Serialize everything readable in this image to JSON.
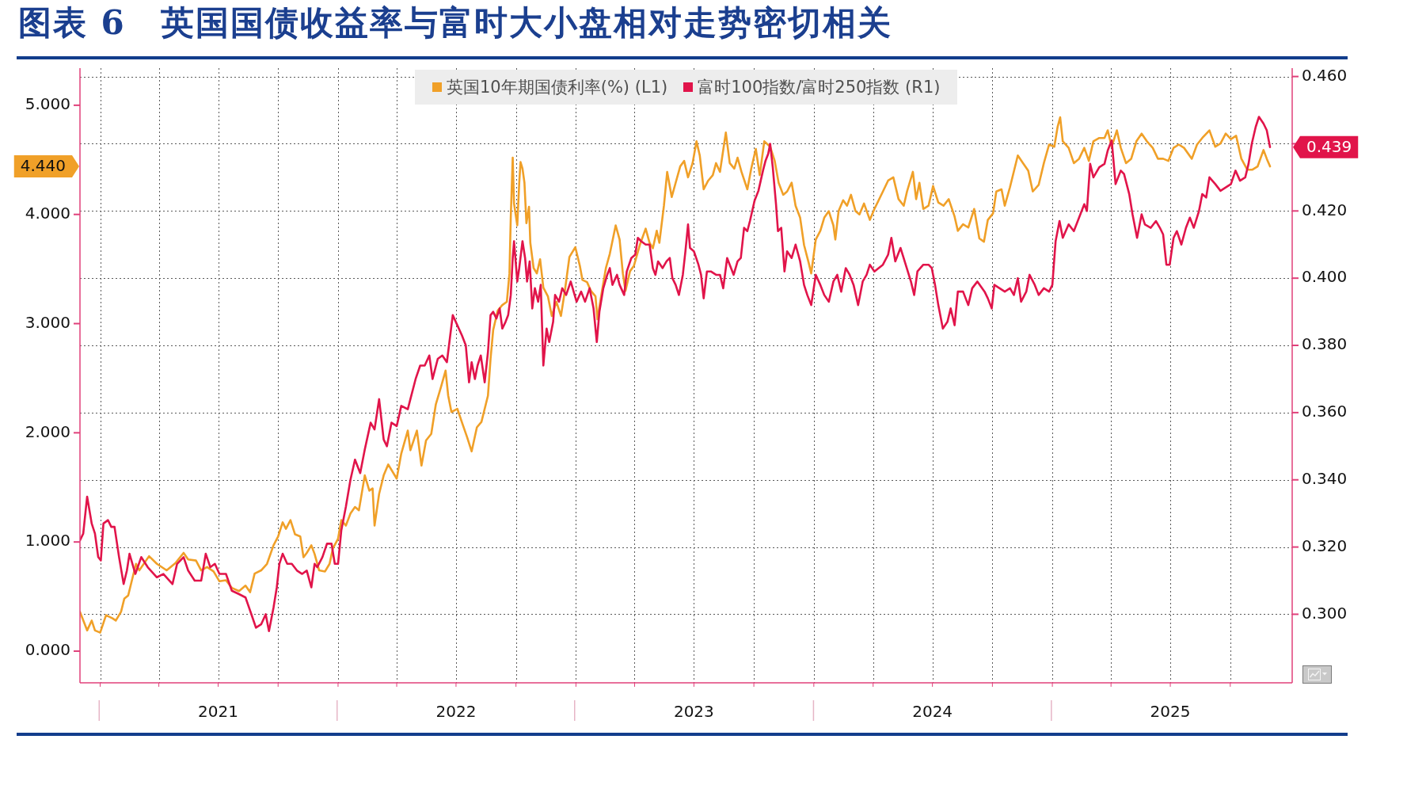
{
  "chart_data": {
    "type": "line",
    "title": "图表 6　英国国债收益率与富时大小盘相对走势密切相关",
    "series": [
      {
        "name": "英国10年期国债利率(%) (L1)",
        "color": "#f0a028",
        "x": [
          "2020-12-01",
          "2020-12-12",
          "2020-12-19",
          "2020-12-24",
          "2021-01-01",
          "2021-01-10",
          "2021-01-20",
          "2021-01-25",
          "2021-02-02",
          "2021-02-07",
          "2021-02-13",
          "2021-02-20",
          "2021-02-25",
          "2021-03-02",
          "2021-03-17",
          "2021-03-29",
          "2021-04-13",
          "2021-04-27",
          "2021-05-09",
          "2021-05-16",
          "2021-05-28",
          "2021-06-05",
          "2021-06-14",
          "2021-06-24",
          "2021-07-03",
          "2021-07-13",
          "2021-07-22",
          "2021-08-02",
          "2021-08-12",
          "2021-08-19",
          "2021-08-26",
          "2021-09-05",
          "2021-09-14",
          "2021-09-24",
          "2021-10-01",
          "2021-10-08",
          "2021-10-13",
          "2021-10-20",
          "2021-10-27",
          "2021-11-04",
          "2021-11-09",
          "2021-11-14",
          "2021-11-21",
          "2021-11-26",
          "2021-12-03",
          "2021-12-12",
          "2021-12-19",
          "2021-12-24",
          "2022-01-01",
          "2022-01-06",
          "2022-01-13",
          "2022-01-20",
          "2022-01-27",
          "2022-02-02",
          "2022-02-11",
          "2022-02-18",
          "2022-02-23",
          "2022-02-26",
          "2022-03-05",
          "2022-03-12",
          "2022-03-19",
          "2022-04-01",
          "2022-04-08",
          "2022-04-18",
          "2022-04-22",
          "2022-05-02",
          "2022-05-09",
          "2022-05-16",
          "2022-05-24",
          "2022-05-31",
          "2022-06-08",
          "2022-06-15",
          "2022-06-19",
          "2022-06-24",
          "2022-07-03",
          "2022-07-11",
          "2022-07-18",
          "2022-07-25",
          "2022-08-02",
          "2022-08-09",
          "2022-08-19",
          "2022-08-23",
          "2022-08-27",
          "2022-09-03",
          "2022-09-10",
          "2022-09-17",
          "2022-09-21",
          "2022-09-23",
          "2022-09-26",
          "2022-09-28",
          "2022-10-03",
          "2022-10-06",
          "2022-10-08",
          "2022-10-11",
          "2022-10-14",
          "2022-10-17",
          "2022-10-21",
          "2022-10-23",
          "2022-10-28",
          "2022-11-02",
          "2022-11-07",
          "2022-11-12",
          "2022-11-19",
          "2022-11-25",
          "2022-12-02",
          "2022-12-09",
          "2022-12-15",
          "2022-12-22",
          "2022-12-31",
          "2023-01-07",
          "2023-01-11",
          "2023-01-18",
          "2023-01-24",
          "2023-01-31",
          "2023-02-03",
          "2023-02-10",
          "2023-02-16",
          "2023-02-22",
          "2023-03-03",
          "2023-03-09",
          "2023-03-14",
          "2023-03-18",
          "2023-03-25",
          "2023-03-31",
          "2023-04-09",
          "2023-04-18",
          "2023-04-24",
          "2023-04-29",
          "2023-05-05",
          "2023-05-09",
          "2023-05-16",
          "2023-05-21",
          "2023-05-28",
          "2023-06-03",
          "2023-06-10",
          "2023-06-16",
          "2023-06-22",
          "2023-06-29",
          "2023-07-05",
          "2023-07-10",
          "2023-07-16",
          "2023-07-23",
          "2023-07-30",
          "2023-08-04",
          "2023-08-10",
          "2023-08-19",
          "2023-08-25",
          "2023-09-01",
          "2023-09-06",
          "2023-09-12",
          "2023-09-21",
          "2023-09-27",
          "2023-10-04",
          "2023-10-10",
          "2023-10-17",
          "2023-10-26",
          "2023-11-02",
          "2023-11-08",
          "2023-11-15",
          "2023-11-21",
          "2023-11-28",
          "2023-12-04",
          "2023-12-11",
          "2023-12-17",
          "2023-12-24",
          "2023-12-28",
          "2024-01-04",
          "2024-01-11",
          "2024-01-17",
          "2024-01-24",
          "2024-01-31",
          "2024-02-03",
          "2024-02-08",
          "2024-02-15",
          "2024-02-21",
          "2024-02-27",
          "2024-03-05",
          "2024-03-11",
          "2024-03-18",
          "2024-03-27",
          "2024-04-03",
          "2024-04-16",
          "2024-04-24",
          "2024-05-02",
          "2024-05-10",
          "2024-05-18",
          "2024-05-23",
          "2024-06-01",
          "2024-06-06",
          "2024-06-11",
          "2024-06-17",
          "2024-06-25",
          "2024-07-02",
          "2024-07-10",
          "2024-07-18",
          "2024-07-26",
          "2024-08-04",
          "2024-08-09",
          "2024-08-17",
          "2024-08-25",
          "2024-09-03",
          "2024-09-11",
          "2024-09-18",
          "2024-09-24",
          "2024-10-02",
          "2024-10-07",
          "2024-10-15",
          "2024-10-20",
          "2024-10-28",
          "2024-11-09",
          "2024-11-17",
          "2024-11-25",
          "2024-12-02",
          "2024-12-11",
          "2024-12-19",
          "2024-12-27",
          "2025-01-04",
          "2025-01-09",
          "2025-01-13",
          "2025-01-17",
          "2025-01-26",
          "2025-02-03",
          "2025-02-11",
          "2025-02-19",
          "2025-02-26",
          "2025-03-05",
          "2025-03-14",
          "2025-03-22",
          "2025-03-27",
          "2025-04-02",
          "2025-04-10",
          "2025-04-16",
          "2025-04-24",
          "2025-05-02",
          "2025-05-10",
          "2025-05-18",
          "2025-05-26",
          "2025-06-04",
          "2025-06-12",
          "2025-06-20",
          "2025-06-28",
          "2025-07-06",
          "2025-07-14",
          "2025-07-22",
          "2025-08-03",
          "2025-08-11",
          "2025-08-19",
          "2025-08-30",
          "2025-09-08",
          "2025-09-16",
          "2025-09-24",
          "2025-10-02",
          "2025-10-10",
          "2025-10-18",
          "2025-10-27",
          "2025-11-04",
          "2025-11-12",
          "2025-11-21",
          "2025-11-26",
          "2025-12-01"
        ],
        "values": [
          0.36,
          0.19,
          0.28,
          0.19,
          0.17,
          0.33,
          0.3,
          0.28,
          0.36,
          0.48,
          0.51,
          0.68,
          0.8,
          0.74,
          0.87,
          0.8,
          0.74,
          0.81,
          0.9,
          0.84,
          0.83,
          0.74,
          0.77,
          0.73,
          0.64,
          0.65,
          0.58,
          0.55,
          0.6,
          0.54,
          0.71,
          0.74,
          0.8,
          0.97,
          1.05,
          1.18,
          1.12,
          1.2,
          1.07,
          1.05,
          0.86,
          0.9,
          0.97,
          0.89,
          0.74,
          0.73,
          0.8,
          0.94,
          1.03,
          1.2,
          1.15,
          1.26,
          1.32,
          1.29,
          1.61,
          1.47,
          1.49,
          1.15,
          1.44,
          1.61,
          1.71,
          1.58,
          1.81,
          2.02,
          1.84,
          2.02,
          1.7,
          1.93,
          1.99,
          2.26,
          2.42,
          2.57,
          2.34,
          2.19,
          2.22,
          2.08,
          1.96,
          1.83,
          2.05,
          2.1,
          2.34,
          2.68,
          2.94,
          3.12,
          3.17,
          3.2,
          3.46,
          3.97,
          4.52,
          4.1,
          3.9,
          4.29,
          4.48,
          4.42,
          4.29,
          3.92,
          4.07,
          3.74,
          3.51,
          3.46,
          3.59,
          3.33,
          3.25,
          3.07,
          3.2,
          3.07,
          3.3,
          3.61,
          3.7,
          3.53,
          3.4,
          3.38,
          3.3,
          3.25,
          3.04,
          3.3,
          3.51,
          3.64,
          3.9,
          3.77,
          3.46,
          3.3,
          3.48,
          3.53,
          3.72,
          3.87,
          3.74,
          3.69,
          3.85,
          3.74,
          4.08,
          4.39,
          4.16,
          4.29,
          4.44,
          4.49,
          4.34,
          4.47,
          4.67,
          4.54,
          4.23,
          4.31,
          4.36,
          4.47,
          4.39,
          4.75,
          4.47,
          4.42,
          4.52,
          4.39,
          4.23,
          4.42,
          4.6,
          4.36,
          4.67,
          4.62,
          4.49,
          4.29,
          4.18,
          4.21,
          4.29,
          4.08,
          3.97,
          3.72,
          3.56,
          3.46,
          3.77,
          3.85,
          3.97,
          4.03,
          3.9,
          3.77,
          4.03,
          4.13,
          4.08,
          4.18,
          4.03,
          4.0,
          4.1,
          3.95,
          4.05,
          4.21,
          4.31,
          4.34,
          4.14,
          4.08,
          4.21,
          4.39,
          4.14,
          4.29,
          4.05,
          4.08,
          4.26,
          4.11,
          4.08,
          4.14,
          3.98,
          3.85,
          3.91,
          3.88,
          4.05,
          3.78,
          3.75,
          3.95,
          4.01,
          4.21,
          4.23,
          4.08,
          4.25,
          4.54,
          4.47,
          4.4,
          4.21,
          4.27,
          4.47,
          4.64,
          4.62,
          4.8,
          4.89,
          4.67,
          4.61,
          4.47,
          4.51,
          4.61,
          4.49,
          4.67,
          4.7,
          4.7,
          4.77,
          4.62,
          4.77,
          4.61,
          4.47,
          4.51,
          4.67,
          4.74,
          4.67,
          4.61,
          4.51,
          4.51,
          4.49,
          4.61,
          4.64,
          4.61,
          4.51,
          4.64,
          4.7,
          4.77,
          4.62,
          4.65,
          4.74,
          4.69,
          4.72,
          4.51,
          4.41,
          4.41,
          4.44,
          4.59,
          4.51,
          4.44
        ]
      },
      {
        "name": "富时100指数/富时250指数 (R1)",
        "color": "#e1144a",
        "axis": "y2",
        "x": [
          "2020-12-01",
          "2020-12-06",
          "2020-12-12",
          "2020-12-19",
          "2020-12-24",
          "2020-12-29",
          "2021-01-02",
          "2021-01-06",
          "2021-01-13",
          "2021-01-18",
          "2021-01-23",
          "2021-01-30",
          "2021-02-06",
          "2021-02-11",
          "2021-02-15",
          "2021-02-24",
          "2021-03-05",
          "2021-03-15",
          "2021-03-29",
          "2021-04-08",
          "2021-04-22",
          "2021-04-29",
          "2021-05-09",
          "2021-05-16",
          "2021-05-26",
          "2021-06-05",
          "2021-06-12",
          "2021-06-19",
          "2021-06-26",
          "2021-07-03",
          "2021-07-13",
          "2021-07-22",
          "2021-08-02",
          "2021-08-12",
          "2021-08-21",
          "2021-08-28",
          "2021-09-05",
          "2021-09-12",
          "2021-09-17",
          "2021-09-24",
          "2021-09-29",
          "2021-10-03",
          "2021-10-08",
          "2021-10-15",
          "2021-10-22",
          "2021-10-30",
          "2021-11-07",
          "2021-11-14",
          "2021-11-21",
          "2021-11-26",
          "2021-11-30",
          "2021-12-08",
          "2021-12-15",
          "2021-12-22",
          "2021-12-27",
          "2022-01-01",
          "2022-01-06",
          "2022-01-13",
          "2022-01-20",
          "2022-01-27",
          "2022-02-04",
          "2022-02-11",
          "2022-02-20",
          "2022-02-26",
          "2022-03-05",
          "2022-03-12",
          "2022-03-17",
          "2022-03-24",
          "2022-04-01",
          "2022-04-08",
          "2022-04-18",
          "2022-04-22",
          "2022-04-30",
          "2022-05-07",
          "2022-05-14",
          "2022-05-21",
          "2022-05-26",
          "2022-06-03",
          "2022-06-10",
          "2022-06-17",
          "2022-06-26",
          "2022-07-10",
          "2022-07-16",
          "2022-07-21",
          "2022-07-25",
          "2022-07-30",
          "2022-08-03",
          "2022-08-08",
          "2022-08-14",
          "2022-08-19",
          "2022-08-23",
          "2022-08-27",
          "2022-09-01",
          "2022-09-06",
          "2022-09-10",
          "2022-09-15",
          "2022-09-19",
          "2022-09-23",
          "2022-09-26",
          "2022-09-28",
          "2022-10-03",
          "2022-10-06",
          "2022-10-11",
          "2022-10-15",
          "2022-10-18",
          "2022-10-22",
          "2022-10-26",
          "2022-10-30",
          "2022-11-04",
          "2022-11-08",
          "2022-11-12",
          "2022-11-17",
          "2022-11-21",
          "2022-11-27",
          "2022-11-30",
          "2022-12-06",
          "2022-12-11",
          "2022-12-17",
          "2022-12-24",
          "2023-01-02",
          "2023-01-09",
          "2023-01-15",
          "2023-01-22",
          "2023-01-28",
          "2023-02-02",
          "2023-02-06",
          "2023-02-12",
          "2023-02-18",
          "2023-02-22",
          "2023-02-26",
          "2023-03-05",
          "2023-03-09",
          "2023-03-16",
          "2023-03-20",
          "2023-03-27",
          "2023-04-02",
          "2023-04-06",
          "2023-04-11",
          "2023-04-18",
          "2023-04-24",
          "2023-04-29",
          "2023-05-03",
          "2023-05-07",
          "2023-05-14",
          "2023-05-20",
          "2023-05-25",
          "2023-05-29",
          "2023-06-03",
          "2023-06-08",
          "2023-06-14",
          "2023-06-18",
          "2023-06-22",
          "2023-06-25",
          "2023-07-01",
          "2023-07-08",
          "2023-07-12",
          "2023-07-16",
          "2023-07-21",
          "2023-07-27",
          "2023-08-04",
          "2023-08-10",
          "2023-08-15",
          "2023-08-21",
          "2023-08-25",
          "2023-08-31",
          "2023-09-06",
          "2023-09-11",
          "2023-09-16",
          "2023-09-21",
          "2023-09-25",
          "2023-10-02",
          "2023-10-08",
          "2023-10-15",
          "2023-10-19",
          "2023-10-23",
          "2023-10-26",
          "2023-10-30",
          "2023-11-04",
          "2023-11-07",
          "2023-11-12",
          "2023-11-17",
          "2023-11-21",
          "2023-11-28",
          "2023-12-04",
          "2023-12-11",
          "2023-12-17",
          "2023-12-22",
          "2023-12-28",
          "2024-01-04",
          "2024-01-11",
          "2024-01-17",
          "2024-01-24",
          "2024-01-31",
          "2024-02-06",
          "2024-02-12",
          "2024-02-19",
          "2024-02-25",
          "2024-03-02",
          "2024-03-09",
          "2024-03-16",
          "2024-03-22",
          "2024-03-27",
          "2024-04-03",
          "2024-04-16",
          "2024-04-24",
          "2024-04-29",
          "2024-05-05",
          "2024-05-13",
          "2024-05-21",
          "2024-05-29",
          "2024-06-03",
          "2024-06-08",
          "2024-06-17",
          "2024-06-25",
          "2024-06-30",
          "2024-07-05",
          "2024-07-10",
          "2024-07-17",
          "2024-07-24",
          "2024-07-29",
          "2024-08-04",
          "2024-08-09",
          "2024-08-17",
          "2024-08-25",
          "2024-08-31",
          "2024-09-08",
          "2024-09-19",
          "2024-09-24",
          "2024-09-30",
          "2024-10-04",
          "2024-10-12",
          "2024-10-20",
          "2024-10-28",
          "2024-11-03",
          "2024-11-09",
          "2024-11-14",
          "2024-11-22",
          "2024-11-27",
          "2024-12-05",
          "2024-12-11",
          "2024-12-19",
          "2024-12-27",
          "2025-01-01",
          "2025-01-06",
          "2025-01-12",
          "2025-01-17",
          "2025-01-26",
          "2025-02-03",
          "2025-02-11",
          "2025-02-19",
          "2025-02-23",
          "2025-02-28",
          "2025-03-05",
          "2025-03-14",
          "2025-03-22",
          "2025-03-27",
          "2025-04-02",
          "2025-04-08",
          "2025-04-16",
          "2025-04-21",
          "2025-04-29",
          "2025-05-04",
          "2025-05-11",
          "2025-05-18",
          "2025-05-23",
          "2025-06-01",
          "2025-06-09",
          "2025-06-15",
          "2025-06-20",
          "2025-06-25",
          "2025-06-30",
          "2025-07-06",
          "2025-07-11",
          "2025-07-18",
          "2025-07-25",
          "2025-07-31",
          "2025-08-06",
          "2025-08-14",
          "2025-08-19",
          "2025-08-25",
          "2025-08-30",
          "2025-09-08",
          "2025-09-16",
          "2025-09-24",
          "2025-10-02",
          "2025-10-09",
          "2025-10-16",
          "2025-10-24",
          "2025-10-29",
          "2025-11-03",
          "2025-11-09",
          "2025-11-14",
          "2025-11-21",
          "2025-11-26",
          "2025-12-01"
        ],
        "values": [
          0.322,
          0.324,
          0.335,
          0.327,
          0.324,
          0.317,
          0.316,
          0.327,
          0.328,
          0.326,
          0.326,
          0.317,
          0.309,
          0.313,
          0.318,
          0.312,
          0.317,
          0.314,
          0.311,
          0.312,
          0.309,
          0.315,
          0.317,
          0.313,
          0.31,
          0.31,
          0.318,
          0.314,
          0.315,
          0.312,
          0.312,
          0.307,
          0.306,
          0.305,
          0.3,
          0.296,
          0.297,
          0.3,
          0.295,
          0.302,
          0.308,
          0.315,
          0.318,
          0.315,
          0.315,
          0.313,
          0.312,
          0.313,
          0.308,
          0.315,
          0.314,
          0.317,
          0.321,
          0.321,
          0.315,
          0.315,
          0.325,
          0.332,
          0.34,
          0.346,
          0.342,
          0.349,
          0.357,
          0.355,
          0.364,
          0.352,
          0.35,
          0.357,
          0.356,
          0.362,
          0.361,
          0.364,
          0.37,
          0.374,
          0.374,
          0.377,
          0.37,
          0.376,
          0.377,
          0.375,
          0.389,
          0.383,
          0.38,
          0.369,
          0.375,
          0.37,
          0.374,
          0.377,
          0.369,
          0.378,
          0.389,
          0.39,
          0.388,
          0.391,
          0.385,
          0.387,
          0.389,
          0.395,
          0.406,
          0.411,
          0.399,
          0.403,
          0.411,
          0.406,
          0.399,
          0.405,
          0.391,
          0.397,
          0.393,
          0.398,
          0.374,
          0.385,
          0.381,
          0.387,
          0.395,
          0.393,
          0.397,
          0.395,
          0.399,
          0.393,
          0.396,
          0.393,
          0.397,
          0.391,
          0.381,
          0.39,
          0.397,
          0.401,
          0.403,
          0.398,
          0.401,
          0.398,
          0.395,
          0.402,
          0.406,
          0.407,
          0.412,
          0.411,
          0.41,
          0.41,
          0.403,
          0.401,
          0.405,
          0.403,
          0.405,
          0.406,
          0.4,
          0.398,
          0.395,
          0.401,
          0.408,
          0.416,
          0.409,
          0.408,
          0.404,
          0.401,
          0.394,
          0.402,
          0.402,
          0.401,
          0.401,
          0.397,
          0.406,
          0.404,
          0.401,
          0.405,
          0.406,
          0.415,
          0.414,
          0.417,
          0.423,
          0.426,
          0.432,
          0.435,
          0.437,
          0.44,
          0.433,
          0.422,
          0.414,
          0.415,
          0.402,
          0.408,
          0.406,
          0.41,
          0.405,
          0.398,
          0.395,
          0.392,
          0.401,
          0.398,
          0.395,
          0.393,
          0.399,
          0.401,
          0.396,
          0.403,
          0.401,
          0.398,
          0.392,
          0.399,
          0.401,
          0.404,
          0.402,
          0.404,
          0.407,
          0.412,
          0.405,
          0.409,
          0.404,
          0.399,
          0.395,
          0.402,
          0.404,
          0.404,
          0.403,
          0.398,
          0.392,
          0.385,
          0.387,
          0.391,
          0.386,
          0.396,
          0.396,
          0.392,
          0.397,
          0.399,
          0.396,
          0.394,
          0.391,
          0.398,
          0.397,
          0.396,
          0.397,
          0.395,
          0.4,
          0.393,
          0.396,
          0.401,
          0.398,
          0.395,
          0.397,
          0.396,
          0.398,
          0.411,
          0.417,
          0.412,
          0.416,
          0.414,
          0.418,
          0.422,
          0.42,
          0.434,
          0.43,
          0.433,
          0.434,
          0.438,
          0.441,
          0.428,
          0.432,
          0.431,
          0.425,
          0.419,
          0.412,
          0.419,
          0.416,
          0.415,
          0.417,
          0.415,
          0.413,
          0.404,
          0.404,
          0.412,
          0.414,
          0.41,
          0.415,
          0.418,
          0.415,
          0.42,
          0.425,
          0.424,
          0.43,
          0.428,
          0.426,
          0.427,
          0.428,
          0.432,
          0.429,
          0.43,
          0.434,
          0.44,
          0.445,
          0.448,
          0.446,
          0.444,
          0.439
        ]
      }
    ],
    "xlim": [
      "2020-12-01",
      "2026-01-04"
    ],
    "xticks": [
      {
        "value": "2021-01-01",
        "label": null
      },
      {
        "value": "2021-04-01",
        "label": null
      },
      {
        "value": "2021-07-01",
        "label": "2021"
      },
      {
        "value": "2021-10-01",
        "label": null
      },
      {
        "value": "2022-01-01",
        "label": null
      },
      {
        "value": "2022-04-01",
        "label": null
      },
      {
        "value": "2022-07-01",
        "label": "2022"
      },
      {
        "value": "2022-10-01",
        "label": null
      },
      {
        "value": "2023-01-01",
        "label": null
      },
      {
        "value": "2023-04-01",
        "label": null
      },
      {
        "value": "2023-07-01",
        "label": "2023"
      },
      {
        "value": "2023-10-01",
        "label": null
      },
      {
        "value": "2024-01-01",
        "label": null
      },
      {
        "value": "2024-04-01",
        "label": null
      },
      {
        "value": "2024-07-01",
        "label": "2024"
      },
      {
        "value": "2024-10-01",
        "label": null
      },
      {
        "value": "2025-01-01",
        "label": null
      },
      {
        "value": "2025-04-01",
        "label": null
      },
      {
        "value": "2025-07-01",
        "label": "2025"
      },
      {
        "value": "2025-10-01",
        "label": null
      }
    ],
    "ylim": [
      -0.29,
      5.34
    ],
    "yticks": [
      {
        "value": 0,
        "label": "0.000"
      },
      {
        "value": 1,
        "label": "1.000"
      },
      {
        "value": 2,
        "label": "2.000"
      },
      {
        "value": 3,
        "label": "3.000"
      },
      {
        "value": 4,
        "label": "4.000"
      },
      {
        "value": 5,
        "label": "5.000"
      }
    ],
    "y2lim": [
      0.2796,
      0.4625
    ],
    "y2ticks": [
      {
        "value": 0.3,
        "label": "0.300"
      },
      {
        "value": 0.32,
        "label": "0.320"
      },
      {
        "value": 0.34,
        "label": "0.340"
      },
      {
        "value": 0.36,
        "label": "0.360"
      },
      {
        "value": 0.38,
        "label": "0.380"
      },
      {
        "value": 0.4,
        "label": "0.400"
      },
      {
        "value": 0.42,
        "label": "0.420"
      },
      {
        "value": 0.44,
        "label": null
      },
      {
        "value": 0.46,
        "label": "0.460"
      }
    ],
    "grid": true,
    "legend": "top",
    "marker": "none",
    "line_style": "solid",
    "annotations": [
      "4.440",
      "0.439"
    ]
  }
}
